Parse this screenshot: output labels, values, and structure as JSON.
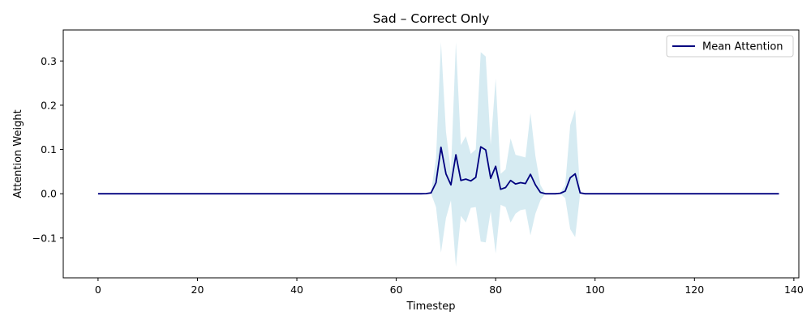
{
  "chart_data": {
    "type": "line",
    "title": "Sad – Correct Only",
    "xlabel": "Timestep",
    "ylabel": "Attention Weight",
    "xlim": [
      -7,
      141
    ],
    "ylim": [
      -0.19,
      0.37
    ],
    "x_ticks": [
      0,
      20,
      40,
      60,
      80,
      100,
      120,
      140
    ],
    "x_tick_labels": [
      "0",
      "20",
      "40",
      "60",
      "80",
      "100",
      "120",
      "140"
    ],
    "y_ticks": [
      -0.1,
      0.0,
      0.1,
      0.2,
      0.3
    ],
    "y_tick_labels": [
      "−0.1",
      "0.0",
      "0.1",
      "0.2",
      "0.3"
    ],
    "grid": false,
    "legend": {
      "placement": "top-right",
      "entries": [
        "Mean Attention"
      ]
    },
    "colors": {
      "mean_line": "#00007f",
      "band_fill": "#add8e6"
    },
    "series": [
      {
        "name": "Mean Attention",
        "x_range": [
          0,
          137
        ],
        "nonzero_points": [
          [
            66,
            0.0003
          ],
          [
            67,
            0.002
          ],
          [
            68,
            0.025
          ],
          [
            69,
            0.105
          ],
          [
            70,
            0.045
          ],
          [
            71,
            0.02
          ],
          [
            72,
            0.088
          ],
          [
            73,
            0.03
          ],
          [
            74,
            0.033
          ],
          [
            75,
            0.029
          ],
          [
            76,
            0.037
          ],
          [
            77,
            0.106
          ],
          [
            78,
            0.099
          ],
          [
            79,
            0.035
          ],
          [
            80,
            0.062
          ],
          [
            81,
            0.01
          ],
          [
            82,
            0.014
          ],
          [
            83,
            0.03
          ],
          [
            84,
            0.022
          ],
          [
            85,
            0.025
          ],
          [
            86,
            0.023
          ],
          [
            87,
            0.044
          ],
          [
            88,
            0.02
          ],
          [
            89,
            0.003
          ],
          [
            90,
            0.0
          ],
          [
            91,
            0.0
          ],
          [
            92,
            0.0
          ],
          [
            93,
            0.001
          ],
          [
            94,
            0.006
          ],
          [
            95,
            0.036
          ],
          [
            96,
            0.045
          ],
          [
            97,
            0.002
          ],
          [
            98,
            0.0
          ]
        ]
      }
    ],
    "band": {
      "description": "",
      "upper": [
        [
          66,
          0.001
        ],
        [
          67,
          0.004
        ],
        [
          68,
          0.08
        ],
        [
          69,
          0.342
        ],
        [
          70,
          0.14
        ],
        [
          71,
          0.05
        ],
        [
          72,
          0.342
        ],
        [
          73,
          0.11
        ],
        [
          74,
          0.13
        ],
        [
          75,
          0.09
        ],
        [
          76,
          0.1
        ],
        [
          77,
          0.32
        ],
        [
          78,
          0.31
        ],
        [
          79,
          0.11
        ],
        [
          80,
          0.26
        ],
        [
          81,
          0.045
        ],
        [
          82,
          0.055
        ],
        [
          83,
          0.125
        ],
        [
          84,
          0.088
        ],
        [
          85,
          0.085
        ],
        [
          86,
          0.082
        ],
        [
          87,
          0.182
        ],
        [
          88,
          0.085
        ],
        [
          89,
          0.02
        ],
        [
          90,
          0.0
        ],
        [
          91,
          0.0
        ],
        [
          92,
          0.0
        ],
        [
          93,
          0.002
        ],
        [
          94,
          0.02
        ],
        [
          95,
          0.155
        ],
        [
          96,
          0.19
        ],
        [
          97,
          0.004
        ],
        [
          98,
          0.0
        ]
      ],
      "lower": [
        [
          66,
          -0.0005
        ],
        [
          67,
          0.0
        ],
        [
          68,
          -0.03
        ],
        [
          69,
          -0.133
        ],
        [
          70,
          -0.055
        ],
        [
          71,
          -0.015
        ],
        [
          72,
          -0.165
        ],
        [
          73,
          -0.05
        ],
        [
          74,
          -0.065
        ],
        [
          75,
          -0.032
        ],
        [
          76,
          -0.03
        ],
        [
          77,
          -0.108
        ],
        [
          78,
          -0.11
        ],
        [
          79,
          -0.04
        ],
        [
          80,
          -0.135
        ],
        [
          81,
          -0.025
        ],
        [
          82,
          -0.03
        ],
        [
          83,
          -0.065
        ],
        [
          84,
          -0.045
        ],
        [
          85,
          -0.037
        ],
        [
          86,
          -0.035
        ],
        [
          87,
          -0.094
        ],
        [
          88,
          -0.045
        ],
        [
          89,
          -0.015
        ],
        [
          90,
          0.0
        ],
        [
          91,
          0.0
        ],
        [
          92,
          0.0
        ],
        [
          93,
          0.0
        ],
        [
          94,
          -0.01
        ],
        [
          95,
          -0.08
        ],
        [
          96,
          -0.098
        ],
        [
          97,
          0.0
        ],
        [
          98,
          0.0
        ]
      ]
    }
  }
}
